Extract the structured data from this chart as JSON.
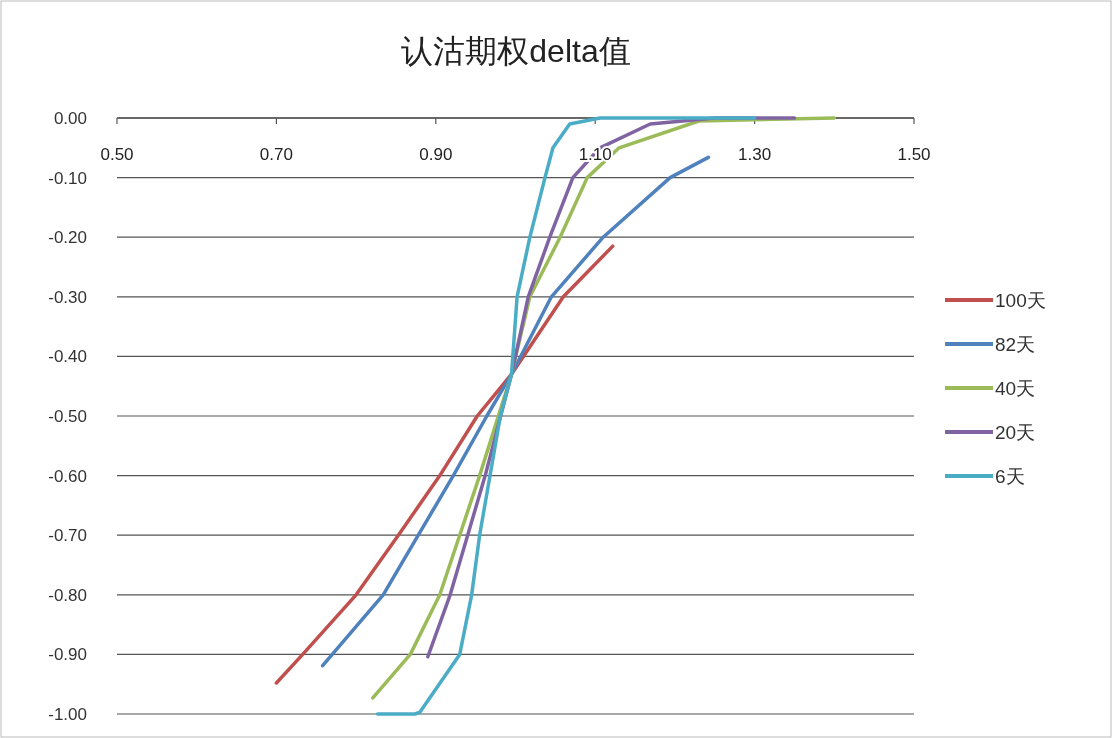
{
  "chart_data": {
    "type": "line",
    "title": "认沽期权delta值",
    "xlim": [
      0.5,
      1.5
    ],
    "xticks": [
      {
        "value": 0.5,
        "label": "0.50"
      },
      {
        "value": 0.7,
        "label": "0.70"
      },
      {
        "value": 0.9,
        "label": "0.90"
      },
      {
        "value": 1.1,
        "label": "1.10"
      },
      {
        "value": 1.3,
        "label": "1.30"
      },
      {
        "value": 1.5,
        "label": "1.50"
      }
    ],
    "ylim": [
      -1.0,
      0.0
    ],
    "yticks": [
      {
        "value": 0,
        "label": "0.00"
      },
      {
        "value": -0.1,
        "label": "-0.10"
      },
      {
        "value": -0.2,
        "label": "-0.20"
      },
      {
        "value": -0.3,
        "label": "-0.30"
      },
      {
        "value": -0.4,
        "label": "-0.40"
      },
      {
        "value": -0.5,
        "label": "-0.50"
      },
      {
        "value": -0.6,
        "label": "-0.60"
      },
      {
        "value": -0.7,
        "label": "-0.70"
      },
      {
        "value": -0.8,
        "label": "-0.80"
      },
      {
        "value": -0.9,
        "label": "-0.90"
      },
      {
        "value": -1.0,
        "label": "-1.00"
      }
    ],
    "grid": "y",
    "legend": "right",
    "marker": "none",
    "line_style": "solid",
    "series": [
      {
        "name": "100天",
        "color": "#c0504d",
        "x": [
          0.7,
          0.733,
          0.8,
          0.853,
          0.905,
          0.952,
          0.995,
          1.06,
          1.122
        ],
        "values": [
          -0.948,
          -0.9,
          -0.8,
          -0.7,
          -0.6,
          -0.5,
          -0.43,
          -0.3,
          -0.215
        ]
      },
      {
        "name": "82天",
        "color": "#4f81bd",
        "x": [
          0.758,
          0.834,
          0.878,
          0.922,
          0.964,
          0.995,
          1.045,
          1.11,
          1.194,
          1.242
        ],
        "values": [
          -0.919,
          -0.8,
          -0.7,
          -0.6,
          -0.5,
          -0.43,
          -0.3,
          -0.2,
          -0.1,
          -0.066
        ]
      },
      {
        "name": "40天",
        "color": "#9bbb59",
        "x": [
          0.821,
          0.868,
          0.905,
          0.93,
          0.955,
          0.995,
          1.018,
          1.056,
          1.09,
          1.13,
          1.23,
          1.4
        ],
        "values": [
          -0.973,
          -0.9,
          -0.8,
          -0.7,
          -0.6,
          -0.43,
          -0.3,
          -0.2,
          -0.1,
          -0.05,
          -0.005,
          0.0
        ]
      },
      {
        "name": "20天",
        "color": "#8064a2",
        "x": [
          0.89,
          0.918,
          0.94,
          0.962,
          0.995,
          1.016,
          1.043,
          1.072,
          1.106,
          1.169,
          1.25,
          1.35
        ],
        "values": [
          -0.904,
          -0.8,
          -0.7,
          -0.6,
          -0.43,
          -0.3,
          -0.2,
          -0.1,
          -0.05,
          -0.01,
          0.0,
          0.0
        ]
      },
      {
        "name": "6天",
        "color": "#4bacc6",
        "x": [
          0.827,
          0.874,
          0.88,
          0.93,
          0.945,
          0.955,
          0.968,
          0.981,
          0.995,
          1.002,
          1.018,
          1.037,
          1.047,
          1.068,
          1.106,
          1.3
        ],
        "values": [
          -1.0,
          -1.0,
          -0.997,
          -0.9,
          -0.8,
          -0.7,
          -0.6,
          -0.5,
          -0.43,
          -0.3,
          -0.2,
          -0.1,
          -0.05,
          -0.01,
          0.0,
          0.0
        ]
      }
    ]
  }
}
